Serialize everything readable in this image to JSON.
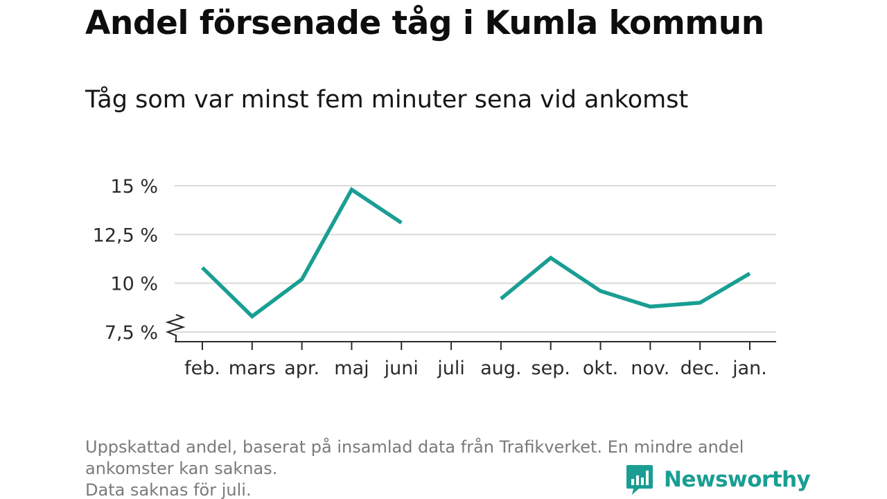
{
  "header": {
    "title": "Andel försenade tåg i Kumla kommun",
    "subtitle": "Tåg som var minst fem minuter sena vid ankomst"
  },
  "chart_data": {
    "type": "line",
    "categories": [
      "feb.",
      "mars",
      "apr.",
      "maj",
      "juni",
      "juli",
      "aug.",
      "sep.",
      "okt.",
      "nov.",
      "dec.",
      "jan."
    ],
    "series": [
      {
        "values": [
          10.8,
          8.3,
          10.2,
          14.8,
          13.1,
          null,
          9.2,
          11.3,
          9.6,
          8.8,
          9.0,
          10.5
        ],
        "color": "#1a9e93"
      }
    ],
    "yticks": [
      7.5,
      10,
      12.5,
      15
    ],
    "ytick_labels": [
      "7,5 %",
      "10 %",
      "12,5 %",
      "15 %"
    ],
    "ylim": [
      7,
      15.5
    ],
    "y_axis_break": true,
    "grid": true,
    "legend": "none"
  },
  "footnote": {
    "line1": "Uppskattad andel, baserat på insamlad data från Trafikverket. En mindre andel",
    "line2": "ankomster kan saknas.",
    "line3": "Data saknas för juli."
  },
  "brand": {
    "name": "Newsworthy",
    "icon": "newsworthy-logo-icon",
    "color": "#1a9e93"
  }
}
